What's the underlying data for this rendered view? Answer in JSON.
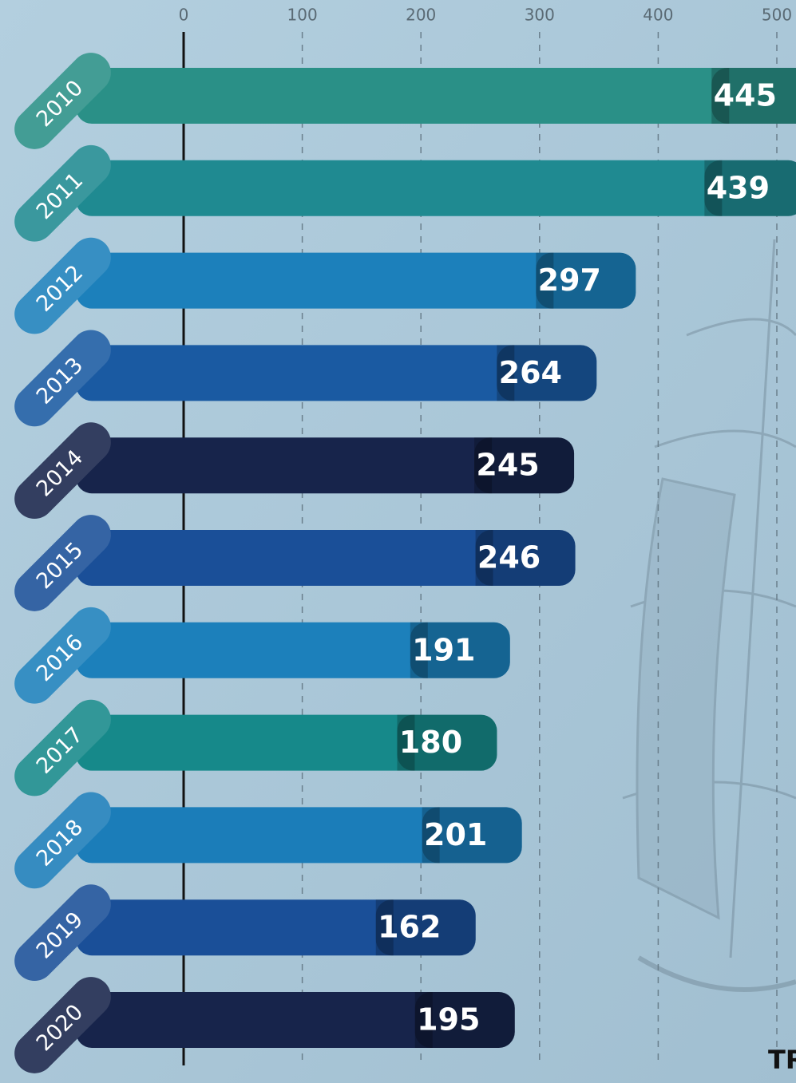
{
  "chart_data": {
    "type": "bar",
    "orientation": "horizontal",
    "categories": [
      "2010",
      "2011",
      "2012",
      "2013",
      "2014",
      "2015",
      "2016",
      "2017",
      "2018",
      "2019",
      "2020"
    ],
    "values": [
      445,
      439,
      297,
      264,
      245,
      246,
      191,
      180,
      201,
      162,
      195
    ],
    "colors": [
      "#2a9087",
      "#1f8a91",
      "#1c80bb",
      "#1a5aa2",
      "#17244b",
      "#1a4f98",
      "#1c80bb",
      "#16898a",
      "#1b7db9",
      "#1a4f98",
      "#17244b"
    ],
    "xlim": [
      0,
      500
    ],
    "xticks": [
      0,
      100,
      200,
      300,
      400,
      500
    ],
    "grid": true,
    "annotation": "TR"
  }
}
